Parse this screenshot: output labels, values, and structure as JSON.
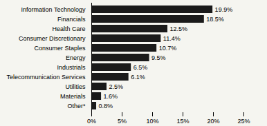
{
  "chart_data": {
    "type": "bar",
    "orientation": "horizontal",
    "categories": [
      "Information Technology",
      "Financials",
      "Health Care",
      "Consumer Discretionary",
      "Consumer Staples",
      "Energy",
      "Industrials",
      "Telecommunication Services",
      "Utilities",
      "Materials",
      "Other*"
    ],
    "values": [
      19.9,
      18.5,
      12.5,
      11.4,
      10.7,
      9.5,
      6.5,
      6.1,
      2.5,
      1.6,
      0.8
    ],
    "value_labels": [
      "19.9%",
      "18.5%",
      "12.5%",
      "11.4%",
      "10.7%",
      "9.5%",
      "6.5%",
      "6.1%",
      "2.5%",
      "1.6%",
      "0.8%"
    ],
    "data_labels": true,
    "color": "#1a1a1a",
    "xlim": [
      0,
      25
    ],
    "xticks": [
      {
        "value": 0,
        "label": "0%"
      },
      {
        "value": 5,
        "label": "5%"
      },
      {
        "value": 10,
        "label": "10%"
      },
      {
        "value": 15,
        "label": "15%"
      },
      {
        "value": 20,
        "label": "20%"
      },
      {
        "value": 25,
        "label": "25%"
      }
    ],
    "grid": false
  }
}
